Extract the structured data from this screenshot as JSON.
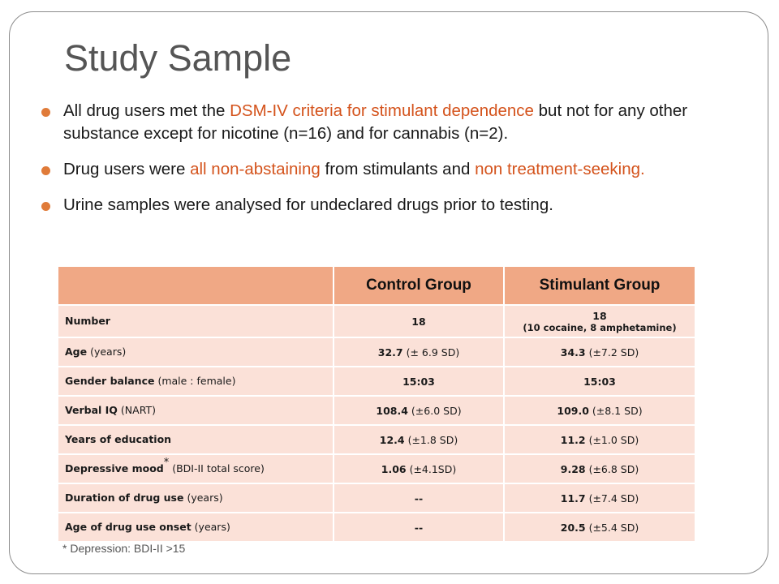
{
  "slide": {
    "title": "Study Sample",
    "bullets": [
      {
        "parts": [
          {
            "text": "All drug users met the ",
            "hl": false
          },
          {
            "text": "DSM-IV criteria for stimulant dependence",
            "hl": true
          },
          {
            "text": " but not for any other substance except for nicotine (n=16) and for cannabis (n=2).",
            "hl": false
          }
        ]
      },
      {
        "parts": [
          {
            "text": "Drug users were ",
            "hl": false
          },
          {
            "text": "all non-abstaining",
            "hl": true
          },
          {
            "text": " from stimulants and ",
            "hl": false
          },
          {
            "text": "non treatment-seeking.",
            "hl": true
          }
        ]
      },
      {
        "parts": [
          {
            "text": "Urine samples were analysed for undeclared drugs prior to testing.",
            "hl": false
          }
        ]
      }
    ],
    "footnote": "* Depression: BDI-II >15"
  },
  "table": {
    "headers": [
      "",
      "Control Group",
      "Stimulant Group"
    ],
    "rows": [
      {
        "label_bold": "Number",
        "label_rest": "",
        "star": "",
        "control_bold": "18",
        "control_rest": "",
        "stim_bold": "18",
        "stim_rest": "",
        "stim_sub": "(10 cocaine, 8 amphetamine)"
      },
      {
        "label_bold": "Age",
        "label_rest": " (years)",
        "star": "",
        "control_bold": "32.7",
        "control_rest": " (± 6.9 SD)",
        "stim_bold": "34.3",
        "stim_rest": " (±7.2 SD)",
        "stim_sub": ""
      },
      {
        "label_bold": "Gender balance",
        "label_rest": " (male : female)",
        "star": "",
        "control_bold": "15:03",
        "control_rest": "",
        "stim_bold": "15:03",
        "stim_rest": "",
        "stim_sub": ""
      },
      {
        "label_bold": "Verbal IQ",
        "label_rest": " (NART)",
        "star": "",
        "control_bold": "108.4",
        "control_rest": " (±6.0 SD)",
        "stim_bold": "109.0",
        "stim_rest": " (±8.1 SD)",
        "stim_sub": ""
      },
      {
        "label_bold": "Years of education",
        "label_rest": "",
        "star": "",
        "control_bold": "12.4",
        "control_rest": " (±1.8 SD)",
        "stim_bold": "11.2",
        "stim_rest": " (±1.0 SD)",
        "stim_sub": ""
      },
      {
        "label_bold": "Depressive mood",
        "label_rest": " (BDI-II total score)",
        "star": "*",
        "control_bold": "1.06",
        "control_rest": " (±4.1SD)",
        "stim_bold": "9.28",
        "stim_rest": " (±6.8 SD)",
        "stim_sub": ""
      },
      {
        "label_bold": "Duration of drug use",
        "label_rest": " (years)",
        "star": "",
        "control_bold": "--",
        "control_rest": "",
        "stim_bold": "11.7",
        "stim_rest": " (±7.4 SD)",
        "stim_sub": ""
      },
      {
        "label_bold": "Age of drug use onset",
        "label_rest": " (years)",
        "star": "",
        "control_bold": "--",
        "control_rest": "",
        "stim_bold": "20.5",
        "stim_rest": " (±5.4 SD)",
        "stim_sub": ""
      }
    ]
  },
  "colors": {
    "highlight": "#d4531c",
    "bullet": "#e07b39",
    "header_bg": "#f0a885",
    "cell_bg": "#fbe1d8"
  }
}
